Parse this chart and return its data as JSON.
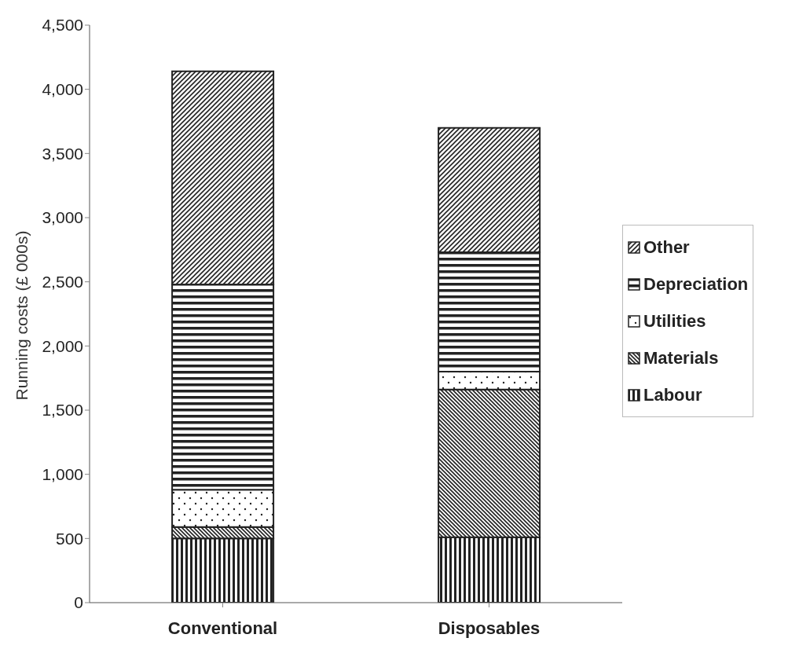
{
  "chart_data": {
    "type": "bar",
    "stacked": true,
    "ylabel": "Running costs (£ 000s)",
    "categories": [
      "Conventional",
      "Disposables"
    ],
    "series": [
      {
        "name": "Labour",
        "color": "#222222",
        "values": [
          500,
          510
        ]
      },
      {
        "name": "Materials",
        "color": "#222222",
        "values": [
          90,
          1150
        ]
      },
      {
        "name": "Utilities",
        "color": "#222222",
        "values": [
          290,
          140
        ]
      },
      {
        "name": "Depreciation",
        "color": "#222222",
        "values": [
          1600,
          930
        ]
      },
      {
        "name": "Other",
        "color": "#222222",
        "values": [
          1660,
          970
        ]
      }
    ],
    "ylim": [
      0,
      4500
    ],
    "yticks": [
      0,
      500,
      {
        "value": 1000,
        "label": "1,000"
      },
      {
        "value": 1500,
        "label": "1,500"
      },
      {
        "value": 2000,
        "label": "2,000"
      },
      {
        "value": 2500,
        "label": "2,500"
      },
      {
        "value": 3000,
        "label": "3,000"
      },
      {
        "value": 3500,
        "label": "3,500"
      },
      {
        "value": 4000,
        "label": "4,000"
      },
      {
        "value": 4500,
        "label": "4,500"
      }
    ],
    "legend": "right",
    "grid": false
  }
}
